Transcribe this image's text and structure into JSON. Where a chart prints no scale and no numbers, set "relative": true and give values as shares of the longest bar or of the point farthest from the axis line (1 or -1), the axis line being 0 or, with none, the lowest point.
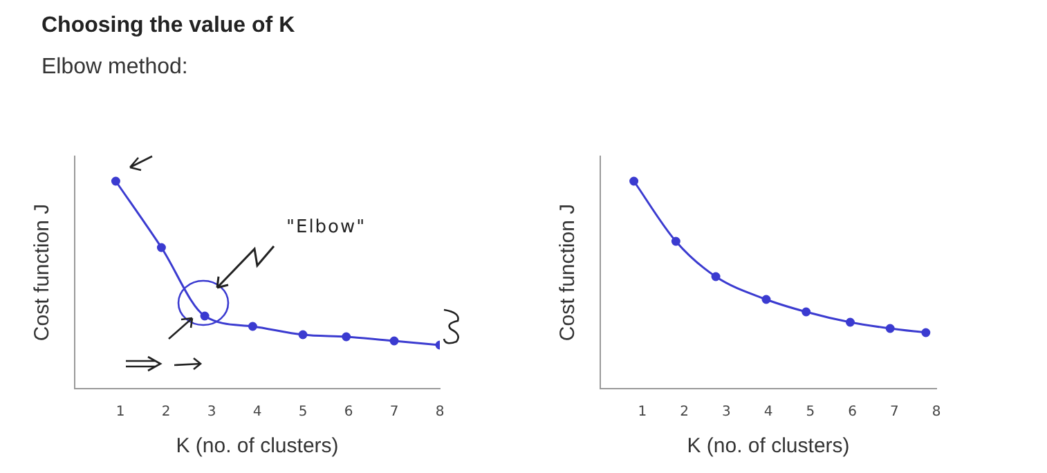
{
  "chart_data": [
    {
      "type": "line",
      "title": "Choosing the value of K",
      "subtitle": "Elbow method:",
      "xlabel": "K (no. of clusters)",
      "ylabel": "Cost function J",
      "relative": true,
      "xlim": [
        0,
        8
      ],
      "xticks": [
        1,
        2,
        3,
        4,
        5,
        6,
        7,
        8
      ],
      "marker": "circle",
      "annotations": [
        "\"Elbow\""
      ],
      "series": [
        {
          "color": "#3b3bd0",
          "x": [
            0.9,
            1.9,
            2.85,
            3.9,
            5,
            5.95,
            7,
            8
          ],
          "values": [
            1,
            0.68,
            0.35,
            0.3,
            0.26,
            0.25,
            0.23,
            0.21
          ]
        }
      ]
    },
    {
      "type": "line",
      "xlabel": "K (no. of clusters)",
      "ylabel": "Cost function J",
      "relative": true,
      "xlim": [
        0,
        8
      ],
      "xticks": [
        1,
        2,
        3,
        4,
        5,
        6,
        7,
        8
      ],
      "marker": "circle",
      "series": [
        {
          "color": "#3b3bd0",
          "x": [
            0.8,
            1.8,
            2.75,
            3.95,
            4.9,
            5.95,
            6.9,
            7.75
          ],
          "values": [
            1,
            0.71,
            0.54,
            0.43,
            0.37,
            0.32,
            0.29,
            0.27
          ]
        }
      ]
    }
  ]
}
